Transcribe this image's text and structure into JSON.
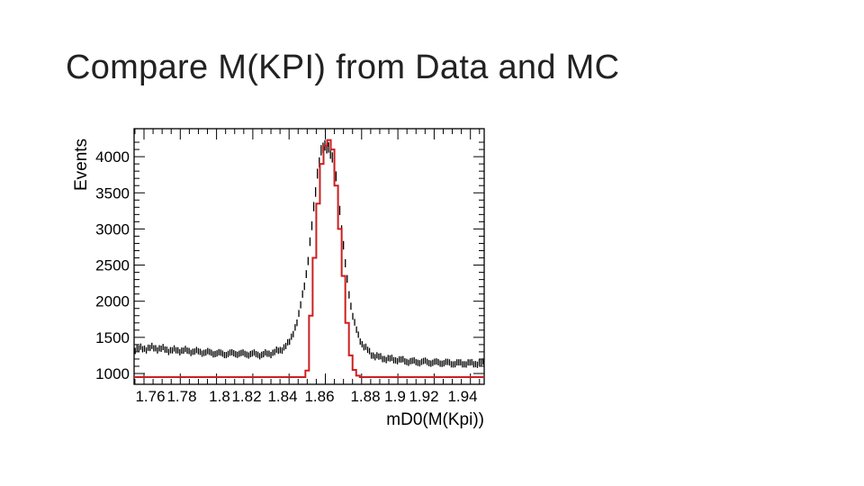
{
  "slide": {
    "title": "Compare M(KPI) from Data and MC"
  },
  "chart_data": {
    "type": "line",
    "xlabel": "mD0(M(Kpi))",
    "ylabel": "Events",
    "xlim": [
      1.75,
      1.95
    ],
    "ylim": [
      950,
      4300
    ],
    "x_tick_labels": [
      "1.76",
      "1.78",
      "1.8",
      "1.82",
      "1.84",
      "1.86",
      "1.88",
      "1.9",
      "1.92",
      "1.94"
    ],
    "y_tick_labels": [
      "1000",
      "1500",
      "2000",
      "2500",
      "3000",
      "3500",
      "4000"
    ],
    "y_ticks": [
      1000,
      1500,
      2000,
      2500,
      3000,
      3500,
      4000
    ],
    "grid": false,
    "colors": {
      "data": "#000000",
      "mc": "#cc1f1f"
    },
    "series": [
      {
        "style": "points-with-error-bars",
        "x": [
          1.75,
          1.755,
          1.76,
          1.765,
          1.77,
          1.775,
          1.78,
          1.785,
          1.79,
          1.795,
          1.8,
          1.805,
          1.81,
          1.815,
          1.82,
          1.825,
          1.83,
          1.835,
          1.84,
          1.845,
          1.85,
          1.852,
          1.854,
          1.856,
          1.858,
          1.86,
          1.862,
          1.864,
          1.866,
          1.868,
          1.87,
          1.872,
          1.874,
          1.876,
          1.878,
          1.88,
          1.885,
          1.89,
          1.895,
          1.9,
          1.905,
          1.91,
          1.915,
          1.92,
          1.925,
          1.93,
          1.935,
          1.94,
          1.945,
          1.95
        ],
        "y": [
          1340,
          1340,
          1345,
          1355,
          1340,
          1320,
          1320,
          1310,
          1300,
          1290,
          1280,
          1270,
          1280,
          1270,
          1270,
          1260,
          1280,
          1320,
          1420,
          1750,
          2450,
          2900,
          3400,
          3850,
          4100,
          4150,
          4130,
          3950,
          3700,
          3250,
          2750,
          2300,
          1950,
          1700,
          1530,
          1420,
          1270,
          1220,
          1200,
          1190,
          1170,
          1160,
          1160,
          1150,
          1150,
          1140,
          1140,
          1140,
          1140,
          1150
        ]
      },
      {
        "style": "step",
        "x": [
          1.75,
          1.8,
          1.84,
          1.849,
          1.851,
          1.853,
          1.855,
          1.857,
          1.859,
          1.861,
          1.863,
          1.865,
          1.867,
          1.869,
          1.871,
          1.873,
          1.875,
          1.877,
          1.879,
          1.881,
          1.9,
          1.95
        ],
        "y": [
          950,
          950,
          950,
          1040,
          1800,
          2600,
          3350,
          3900,
          4150,
          4230,
          4100,
          3600,
          3000,
          2350,
          1700,
          1250,
          1050,
          970,
          950,
          950,
          950,
          950
        ]
      }
    ]
  }
}
